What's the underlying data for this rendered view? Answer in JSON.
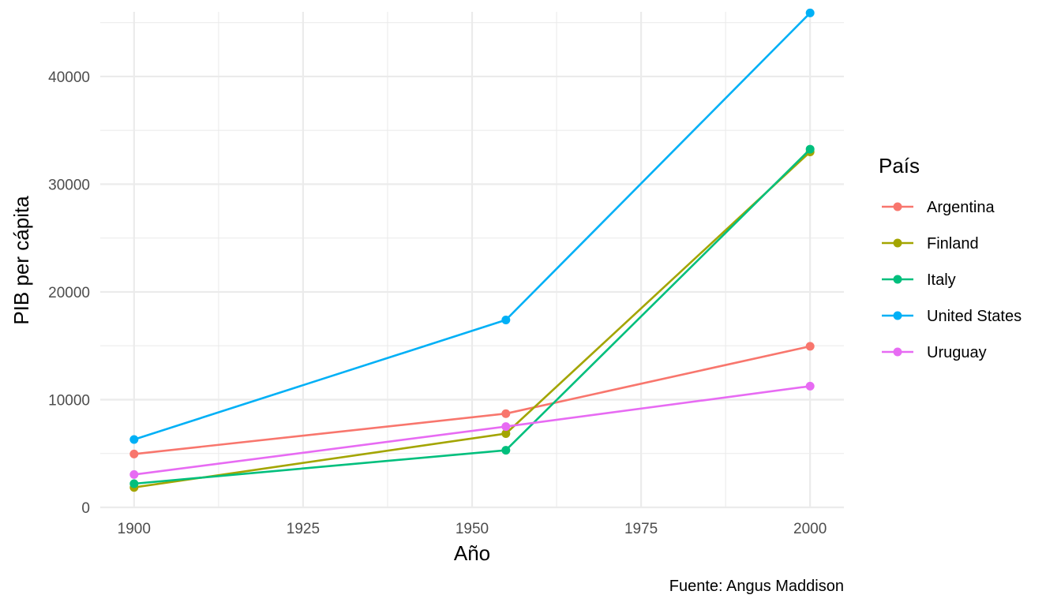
{
  "chart_data": {
    "type": "line",
    "xlabel": "Año",
    "ylabel": "PIB per cápita",
    "caption": "Fuente: Angus Maddison",
    "legend_title": "País",
    "legend_position": "right",
    "grid": true,
    "x": [
      1900,
      1955,
      2000
    ],
    "xlim": [
      1895,
      2005
    ],
    "ylim": [
      0,
      46000
    ],
    "x_ticks": [
      1900,
      1925,
      1950,
      1975,
      2000
    ],
    "x_tick_labels": [
      "1900",
      "1925",
      "1950",
      "1975",
      "2000"
    ],
    "y_ticks": [
      0,
      10000,
      20000,
      30000,
      40000
    ],
    "y_tick_labels": [
      "0",
      "10000",
      "20000",
      "30000",
      "40000"
    ],
    "series": [
      {
        "name": "Argentina",
        "color": "#F8766D",
        "values": [
          4950,
          8700,
          14950
        ]
      },
      {
        "name": "Finland",
        "color": "#A3A500",
        "values": [
          1850,
          6850,
          33000
        ]
      },
      {
        "name": "Italy",
        "color": "#00BF7D",
        "values": [
          2200,
          5300,
          33250
        ]
      },
      {
        "name": "United States",
        "color": "#00B0F6",
        "values": [
          6300,
          17400,
          45900
        ]
      },
      {
        "name": "Uruguay",
        "color": "#E76BF3",
        "values": [
          3050,
          7500,
          11250
        ]
      }
    ]
  }
}
